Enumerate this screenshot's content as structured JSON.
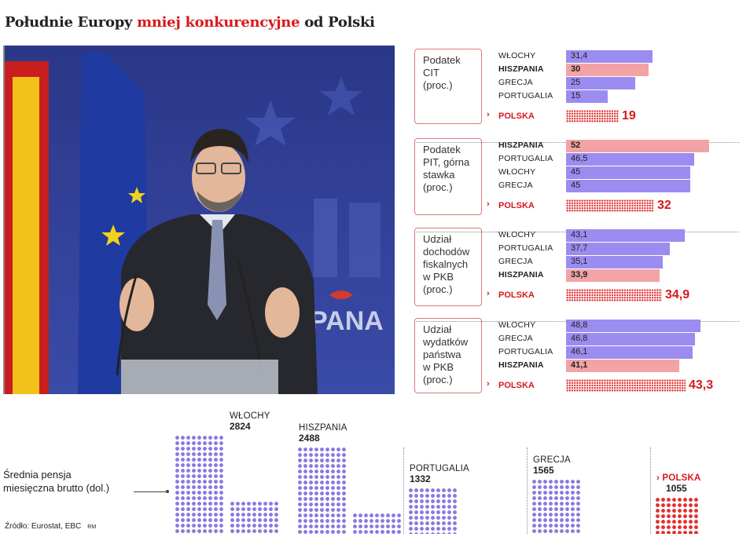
{
  "title": {
    "part1": "Południe Europy ",
    "highlight": "mniej konkurencyjne",
    "part2": " od Polski"
  },
  "colors": {
    "blue_bar": "#9b8cf0",
    "pink_bar": "#f2a3a6",
    "accent_red": "#d7191c"
  },
  "chart_data": [
    {
      "type": "bar",
      "category_label": "Podatek\nCIT\n(proc.)",
      "categories": [
        "WŁOCHY",
        "HISZPANIA",
        "GRECJA",
        "PORTUGALIA"
      ],
      "value_labels": [
        "31,4",
        "30",
        "25",
        "15"
      ],
      "values": [
        31.4,
        30,
        25,
        15
      ],
      "highlight": "HISZPANIA",
      "poland": {
        "label": "POLSKA",
        "value": 19,
        "value_label": "19"
      }
    },
    {
      "type": "bar",
      "category_label": "Podatek\nPIT, górna\nstawka\n(proc.)",
      "categories": [
        "HISZPANIA",
        "PORTUGALIA",
        "WŁOCHY",
        "GRECJA"
      ],
      "value_labels": [
        "52",
        "46,5",
        "45",
        "45"
      ],
      "values": [
        52,
        46.5,
        45,
        45
      ],
      "highlight": "HISZPANIA",
      "poland": {
        "label": "POLSKA",
        "value": 32,
        "value_label": "32"
      }
    },
    {
      "type": "bar",
      "category_label": "Udział\ndochodów\nfiskalnych\nw PKB\n(proc.)",
      "categories": [
        "WŁOCHY",
        "PORTUGALIA",
        "GRECJA",
        "HISZPANIA"
      ],
      "value_labels": [
        "43,1",
        "37,7",
        "35,1",
        "33,9"
      ],
      "values": [
        43.1,
        37.7,
        35.1,
        33.9
      ],
      "highlight": "HISZPANIA",
      "poland": {
        "label": "POLSKA",
        "value": 34.9,
        "value_label": "34,9"
      }
    },
    {
      "type": "bar",
      "category_label": "Udział\nwydatków\npaństwa\nw PKB\n(proc.)",
      "categories": [
        "WŁOCHY",
        "GRECJA",
        "PORTUGALIA",
        "HISZPANIA"
      ],
      "value_labels": [
        "48,8",
        "46,8",
        "46,1",
        "41,1"
      ],
      "values": [
        48.8,
        46.8,
        46.1,
        41.1
      ],
      "highlight": "HISZPANIA",
      "poland": {
        "label": "POLSKA",
        "value": 43.3,
        "value_label": "43,3"
      }
    },
    {
      "type": "bar",
      "category_label": "Średnia pensja\nmiesięczna brutto (dol.)",
      "categories": [
        "WŁOCHY",
        "HISZPANIA",
        "PORTUGALIA",
        "GRECJA",
        "POLSKA"
      ],
      "values": [
        2824,
        2488,
        1332,
        1565,
        1055
      ],
      "highlight": "POLSKA"
    }
  ],
  "pension": {
    "label_line1": "Średnia pensja",
    "label_line2": "miesięczna brutto (dol.)"
  },
  "source": {
    "text": "Źródło: Eurostat, EBC",
    "author": "RM"
  },
  "photo": {
    "backdrop_text": "PANA"
  }
}
